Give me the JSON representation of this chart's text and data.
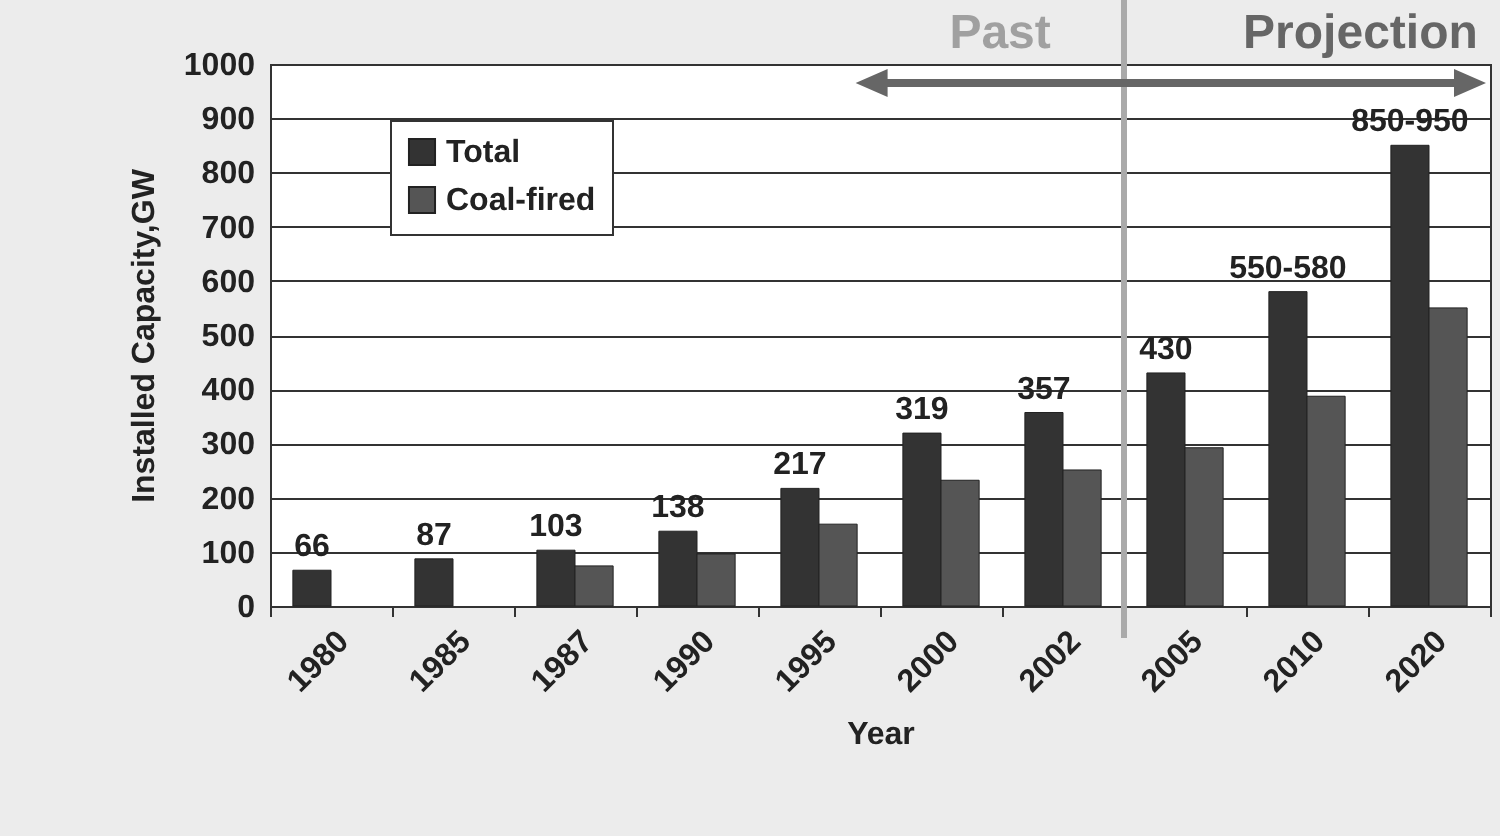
{
  "chart_data": {
    "type": "bar",
    "xlabel": "Year",
    "ylabel": "Installed Capacity,GW",
    "categories": [
      "1980",
      "1985",
      "1987",
      "1990",
      "1995",
      "2000",
      "2002",
      "2005",
      "2010",
      "2020"
    ],
    "series": [
      {
        "name": "Total",
        "color": "#333333",
        "values": [
          66,
          87,
          103,
          138,
          217,
          319,
          357,
          430,
          580,
          850
        ],
        "value_labels": [
          "66",
          "87",
          "103",
          "138",
          "217",
          "319",
          "357",
          "430",
          "550-580",
          "850-950"
        ]
      },
      {
        "name": "Coal-fired",
        "color": "#555555",
        "values": [
          null,
          null,
          74,
          96,
          151,
          232,
          251,
          292,
          387,
          550
        ]
      }
    ],
    "ylim": [
      0,
      1000
    ],
    "yticks": [
      0,
      100,
      200,
      300,
      400,
      500,
      600,
      700,
      800,
      900,
      1000
    ],
    "grid": "y",
    "legend": "top left",
    "ref_lines": [
      {
        "axis": "x",
        "value": "2005",
        "color": "#aaaaaa"
      }
    ],
    "annotations": [
      "Past",
      "Projection"
    ]
  }
}
